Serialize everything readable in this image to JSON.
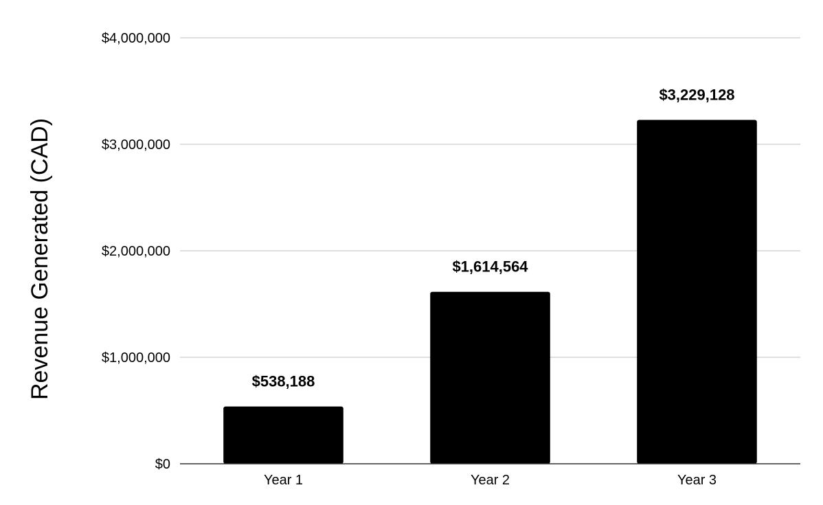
{
  "chart_data": {
    "type": "bar",
    "categories": [
      "Year 1",
      "Year 2",
      "Year 3"
    ],
    "values": [
      538188,
      1614564,
      3229128
    ],
    "data_labels": [
      "$538,188",
      "$1,614,564",
      "$3,229,128"
    ],
    "title": "",
    "xlabel": "",
    "ylabel": "Revenue Generated (CAD)",
    "ylim": [
      0,
      4000000
    ],
    "yticks": [
      0,
      1000000,
      2000000,
      3000000,
      4000000
    ],
    "ytick_labels": [
      "$0",
      "$1,000,000",
      "$2,000,000",
      "$3,000,000",
      "$4,000,000"
    ],
    "grid": true,
    "legend": "none",
    "bar_color": "#000000",
    "grid_color": "#cccccc"
  }
}
